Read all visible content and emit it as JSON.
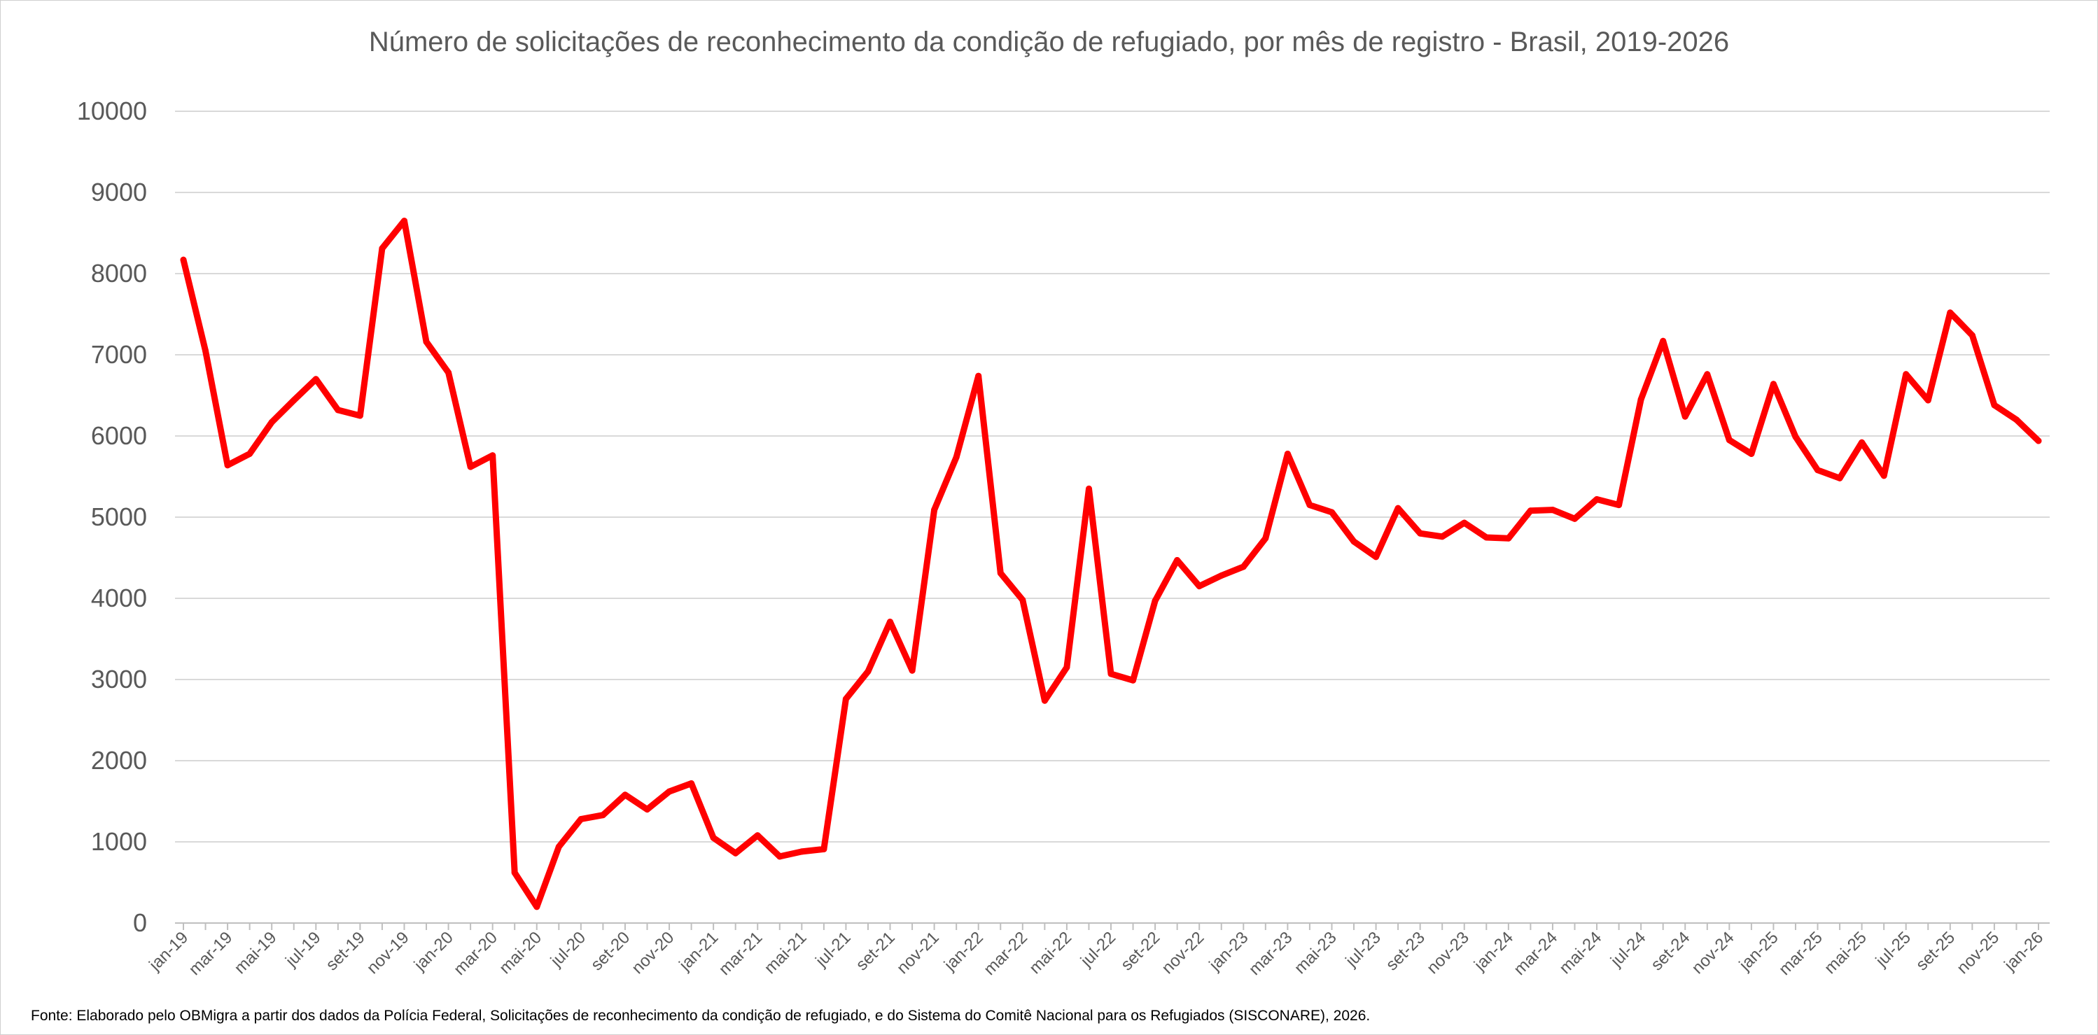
{
  "chart_data": {
    "type": "line",
    "title": "Número de solicitações de reconhecimento da condição de refugiado, por mês de registro - Brasil, 2019-2026",
    "xlabel": "",
    "ylabel": "",
    "ylim": [
      0,
      10000
    ],
    "yticks": [
      "0",
      "1000",
      "2000",
      "3000",
      "4000",
      "5000",
      "6000",
      "7000",
      "8000",
      "9000",
      "10000"
    ],
    "grid": true,
    "legend": "none",
    "x": [
      "jan-19",
      "fev-19",
      "mar-19",
      "abr-19",
      "mai-19",
      "jun-19",
      "jul-19",
      "ago-19",
      "set-19",
      "out-19",
      "nov-19",
      "dez-19",
      "jan-20",
      "fev-20",
      "mar-20",
      "abr-20",
      "mai-20",
      "jun-20",
      "jul-20",
      "ago-20",
      "set-20",
      "out-20",
      "nov-20",
      "dez-20",
      "jan-21",
      "fev-21",
      "mar-21",
      "abr-21",
      "mai-21",
      "jun-21",
      "jul-21",
      "ago-21",
      "set-21",
      "out-21",
      "nov-21",
      "dez-21",
      "jan-22",
      "fev-22",
      "mar-22",
      "abr-22",
      "mai-22",
      "jun-22",
      "jul-22",
      "ago-22",
      "set-22",
      "out-22",
      "nov-22",
      "dez-22",
      "jan-23",
      "fev-23",
      "mar-23",
      "abr-23",
      "mai-23",
      "jun-23",
      "jul-23",
      "ago-23",
      "set-23",
      "out-23",
      "nov-23",
      "dez-23",
      "jan-24",
      "fev-24",
      "mar-24",
      "abr-24",
      "mai-24",
      "jun-24",
      "jul-24",
      "ago-24",
      "set-24",
      "out-24",
      "nov-24",
      "dez-24",
      "jan-25",
      "fev-25",
      "mar-25",
      "abr-25",
      "mai-25",
      "jun-25",
      "jul-25",
      "ago-25",
      "set-25",
      "out-25",
      "nov-25",
      "dez-25",
      "jan-26"
    ],
    "xtick_labels": [
      "jan-19",
      "mar-19",
      "mai-19",
      "jul-19",
      "set-19",
      "nov-19",
      "jan-20",
      "mar-20",
      "mai-20",
      "jul-20",
      "set-20",
      "nov-20",
      "jan-21",
      "mar-21",
      "mai-21",
      "jul-21",
      "set-21",
      "nov-21",
      "jan-22",
      "mar-22",
      "mai-22",
      "jul-22",
      "set-22",
      "nov-22",
      "jan-23",
      "mar-23",
      "mai-23",
      "jul-23",
      "set-23",
      "nov-23",
      "jan-24",
      "mar-24",
      "mai-24",
      "jul-24",
      "set-24",
      "nov-24",
      "jan-25",
      "mar-25",
      "mai-25",
      "jul-25",
      "set-25",
      "nov-25",
      "jan-26"
    ],
    "series": [
      {
        "color": "#ff0000",
        "values": [
          8170,
          7050,
          5640,
          5780,
          6170,
          6440,
          6700,
          6320,
          6250,
          8310,
          8650,
          7160,
          6780,
          5620,
          5760,
          620,
          200,
          940,
          1280,
          1330,
          1580,
          1400,
          1620,
          1720,
          1050,
          860,
          1080,
          820,
          880,
          910,
          2760,
          3100,
          3710,
          3110,
          5090,
          5740,
          6740,
          4310,
          3980,
          2740,
          3150,
          5350,
          3070,
          2990,
          3970,
          4470,
          4150,
          4280,
          4390,
          4740,
          5780,
          5150,
          5060,
          4700,
          4510,
          5110,
          4800,
          4760,
          4930,
          4750,
          4740,
          5080,
          5090,
          4980,
          5220,
          5150,
          6450,
          7170,
          6240,
          6760,
          5950,
          5780,
          6640,
          5990,
          5580,
          5480,
          5920,
          5510,
          6760,
          6440,
          7520,
          7240,
          6380,
          6200,
          5940
        ]
      }
    ]
  },
  "footnote": "Fonte: Elaborado pelo OBMigra a partir dos dados da Polícia Federal, Solicitações de reconhecimento da condição de refugiado, e do Sistema do Comitê Nacional para os Refugiados (SISCONARE), 2026."
}
